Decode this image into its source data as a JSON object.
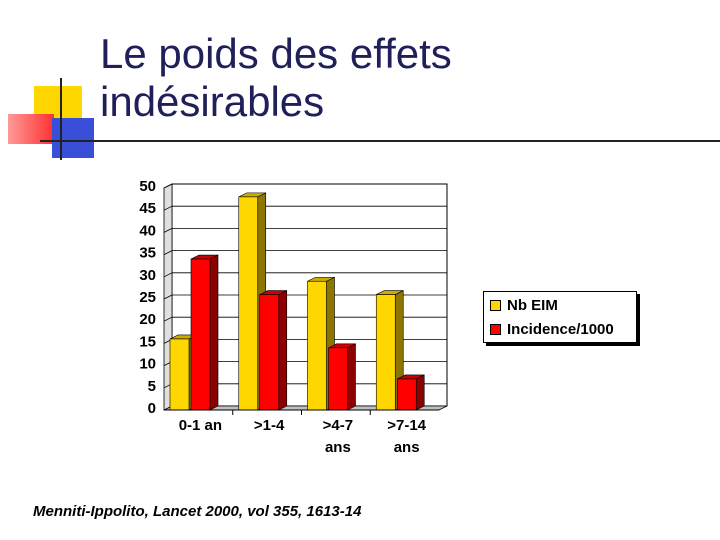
{
  "slide": {
    "title_line1": "Le poids des effets",
    "title_line2": "indésirables",
    "citation": "Menniti-Ippolito, Lancet 2000, vol 355, 1613-14",
    "colors": {
      "title": "#1f1f5a",
      "deco_yellow": "#ffd700",
      "deco_red": "#ff4040",
      "deco_blue": "#3a4fd8"
    }
  },
  "chart_data": {
    "type": "bar",
    "categories": [
      [
        "0-1 an"
      ],
      [
        ">1-4"
      ],
      [
        ">4-7",
        "ans"
      ],
      [
        ">7-14",
        "ans"
      ]
    ],
    "series": [
      {
        "name": "Nb EIM",
        "values": [
          16,
          48,
          29,
          26
        ],
        "color": "#ffd700"
      },
      {
        "name": "Incidence/1000",
        "values": [
          34,
          26,
          14,
          7
        ],
        "color": "#ff0000"
      }
    ],
    "ylim": [
      0,
      50
    ],
    "yticks": [
      0,
      5,
      10,
      15,
      20,
      25,
      30,
      35,
      40,
      45,
      50
    ],
    "grid": true,
    "legend_position": "right"
  }
}
